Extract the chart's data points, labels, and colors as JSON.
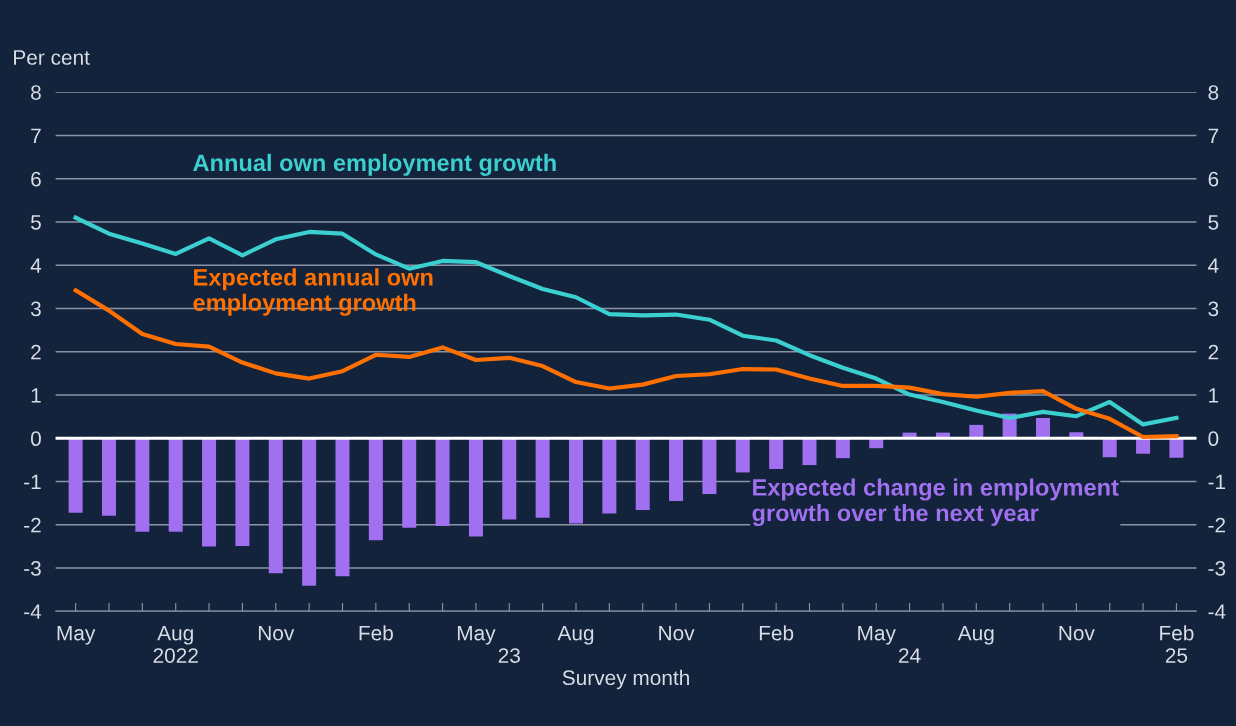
{
  "chart_data": {
    "type": "line",
    "ylabel": "Per cent",
    "xlabel": "Survey month",
    "categories": [
      "May",
      null,
      null,
      "Aug\n2022",
      null,
      null,
      "Nov",
      null,
      null,
      "Feb",
      null,
      null,
      "May",
      "\n23",
      null,
      "Aug",
      null,
      null,
      "Nov",
      null,
      null,
      "Feb",
      null,
      null,
      "May",
      "\n24",
      null,
      "Aug",
      null,
      null,
      "Nov",
      null,
      null,
      "Feb\n25"
    ],
    "series": [
      {
        "name": "Expected change in employment\ngrowth over the next year",
        "type": "bar",
        "color": "#a070f0",
        "values": [
          -1.72,
          -1.79,
          -2.16,
          -2.16,
          -2.5,
          -2.49,
          -3.12,
          -3.41,
          -3.19,
          -2.36,
          -2.07,
          -2.03,
          -2.27,
          -1.88,
          -1.84,
          -1.97,
          -1.74,
          -1.66,
          -1.45,
          -1.29,
          -0.79,
          -0.71,
          -0.62,
          -0.46,
          -0.23,
          0.13,
          0.13,
          0.31,
          0.57,
          0.47,
          0.14,
          -0.44,
          -0.36,
          -0.45
        ]
      },
      {
        "name": "Annual own employment growth",
        "color": "#3ccfcf",
        "values": [
          5.1,
          4.73,
          4.5,
          4.26,
          4.62,
          4.23,
          4.6,
          4.77,
          4.73,
          4.25,
          3.92,
          4.1,
          4.07,
          3.75,
          3.45,
          3.26,
          2.87,
          2.84,
          2.86,
          2.74,
          2.37,
          2.26,
          1.92,
          1.63,
          1.38,
          1.01,
          0.84,
          0.64,
          0.47,
          0.61,
          0.51,
          0.84,
          0.32,
          0.47
        ]
      },
      {
        "name": "Expected annual own\nemployment growth",
        "color": "#ff7000",
        "values": [
          3.42,
          2.95,
          2.41,
          2.18,
          2.12,
          1.75,
          1.5,
          1.38,
          1.55,
          1.93,
          1.88,
          2.1,
          1.81,
          1.86,
          1.67,
          1.3,
          1.15,
          1.24,
          1.44,
          1.48,
          1.6,
          1.59,
          1.38,
          1.21,
          1.21,
          1.17,
          1.02,
          0.96,
          1.05,
          1.09,
          0.68,
          0.45,
          0.03,
          0.05
        ]
      }
    ],
    "ylim": [
      -4,
      8
    ],
    "yticks": [
      -4,
      -3,
      -2,
      -1,
      0,
      1,
      2,
      3,
      4,
      5,
      6,
      7,
      8
    ],
    "y2lim": [
      -4,
      8
    ],
    "y2ticks": [
      -4,
      -3,
      -2,
      -1,
      0,
      1,
      2,
      3,
      4,
      5,
      6,
      7,
      8
    ],
    "ref_lines": [
      {
        "axis": "y",
        "value": 0,
        "color": "#ffffff"
      }
    ],
    "grid": "y",
    "legend": false
  }
}
